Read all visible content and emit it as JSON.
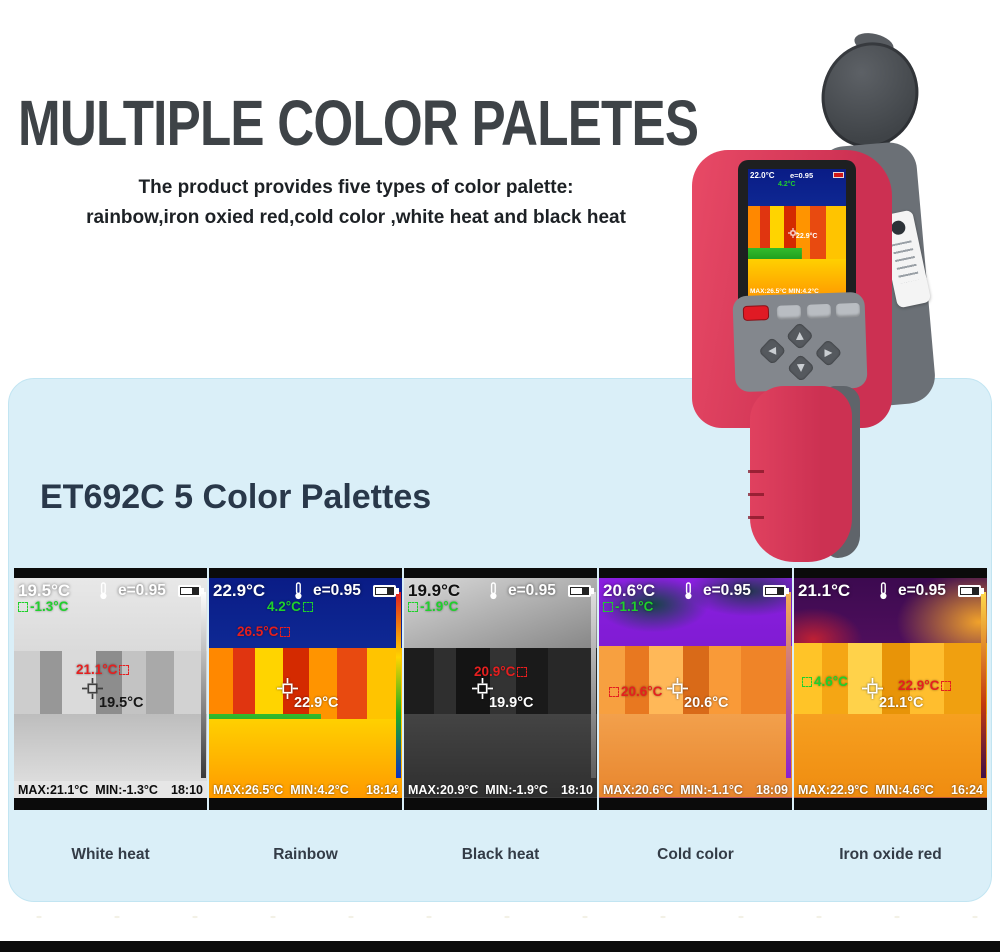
{
  "header": {
    "title": "MULTIPLE COLOR PALETES",
    "subtitle_line1": "The product provides five types of color palette:",
    "subtitle_line2": "rainbow,iron oxied red,cold color ,white heat and black heat"
  },
  "panel": {
    "heading": "ET692C 5 Color Palettes"
  },
  "camera": {
    "screen": {
      "ambient": "22.0°C",
      "emissivity": "e=0.95",
      "cold_spot": "4.2°C",
      "center": "22.9°C",
      "status": "MAX:26.5°C MIN:4.2°C"
    }
  },
  "palettes": [
    {
      "id": "white-heat",
      "label": "White heat",
      "ambient": "19.5°C",
      "emissivity": "e=0.95",
      "cold_spot": "-1.3°C",
      "hot_spot": "21.1°C",
      "center": "19.5°C",
      "max": "MAX:21.1°C",
      "min": "MIN:-1.3°C",
      "time": "18:10"
    },
    {
      "id": "rainbow",
      "label": "Rainbow",
      "ambient": "22.9°C",
      "emissivity": "e=0.95",
      "cold_spot": "4.2°C",
      "hot_spot": "26.5°C",
      "center": "22.9°C",
      "max": "MAX:26.5°C",
      "min": "MIN:4.2°C",
      "time": "18:14"
    },
    {
      "id": "black-heat",
      "label": "Black heat",
      "ambient": "19.9°C",
      "emissivity": "e=0.95",
      "cold_spot": "-1.9°C",
      "hot_spot": "20.9°C",
      "center": "19.9°C",
      "max": "MAX:20.9°C",
      "min": "MIN:-1.9°C",
      "time": "18:10"
    },
    {
      "id": "cold-color",
      "label": "Cold color",
      "ambient": "20.6°C",
      "emissivity": "e=0.95",
      "cold_spot": "-1.1°C",
      "hot_spot": "20.6°C",
      "center": "20.6°C",
      "max": "MAX:20.6°C",
      "min": "MIN:-1.1°C",
      "time": "18:09"
    },
    {
      "id": "iron-oxide-red",
      "label": "Iron oxide red",
      "ambient": "21.1°C",
      "emissivity": "e=0.95",
      "cold_spot": "4.6°C",
      "hot_spot": "22.9°C",
      "center": "21.1°C",
      "max": "MAX:22.9°C",
      "min": "MIN:4.6°C",
      "time": "16:24"
    }
  ],
  "colors": {
    "brand_pink": "#d63a56",
    "panel_bg": "#daeff8",
    "cold_spot_green": "#1fd12c",
    "hot_spot_red": "#e51f1f",
    "title_gray": "#3e4347"
  }
}
